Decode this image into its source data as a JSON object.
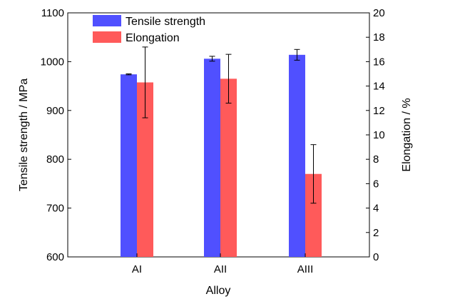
{
  "chart_data": {
    "type": "bar",
    "title": "",
    "xlabel": "Alloy",
    "ylabel": "Tensile strength / MPa",
    "y2label": "Elongation / %",
    "categories": [
      "AI",
      "AII",
      "AIII"
    ],
    "ylim": [
      600,
      1100
    ],
    "y2lim": [
      0,
      20
    ],
    "yticks": [
      600,
      700,
      800,
      900,
      1000,
      1100
    ],
    "y2ticks": [
      0,
      2,
      4,
      6,
      8,
      10,
      12,
      14,
      16,
      18,
      20
    ],
    "grid": false,
    "legend_position": "top-left",
    "series": [
      {
        "name": "Tensile strength",
        "axis": "left",
        "color": "#5050ff",
        "values": [
          974,
          1006,
          1014
        ],
        "errors": [
          1,
          5,
          11
        ]
      },
      {
        "name": "Elongation",
        "axis": "right",
        "color": "#ff5a5a",
        "values": [
          14.3,
          14.6,
          6.8
        ],
        "errors": [
          2.9,
          2.0,
          2.4
        ]
      }
    ]
  }
}
